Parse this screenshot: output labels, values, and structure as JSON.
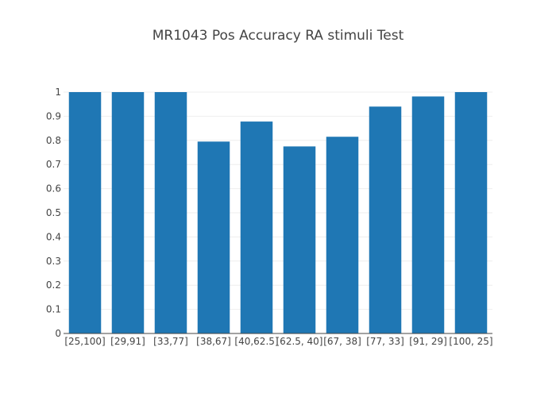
{
  "chart_data": {
    "type": "bar",
    "title": "MR1043 Pos Accuracy RA stimuli Test",
    "xlabel": "",
    "ylabel": "",
    "categories": [
      "[25,100]",
      "[29,91]",
      "[33,77]",
      "[38,67]",
      "[40,62.5]",
      "[62.5, 40]",
      "[67, 38]",
      "[77, 33]",
      "[91, 29]",
      "[100, 25]"
    ],
    "values": [
      1.0,
      1.0,
      1.0,
      0.795,
      0.878,
      0.775,
      0.815,
      0.94,
      0.982,
      1.0
    ],
    "ylim": [
      0,
      1
    ],
    "yticks": [
      0,
      0.1,
      0.2,
      0.3,
      0.4,
      0.5,
      0.6,
      0.7,
      0.8,
      0.9,
      1
    ],
    "ytick_labels": [
      "0",
      "0.1",
      "0.2",
      "0.3",
      "0.4",
      "0.5",
      "0.6",
      "0.7",
      "0.8",
      "0.9",
      "1"
    ],
    "grid": true,
    "bar_color": "#1f77b4",
    "legend": null
  }
}
